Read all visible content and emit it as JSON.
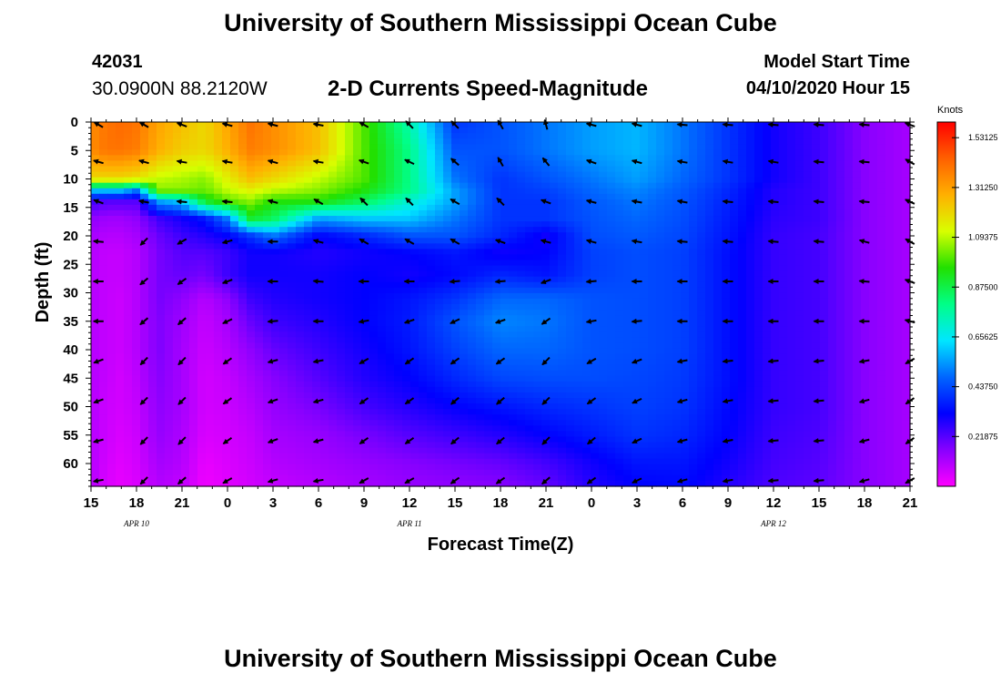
{
  "header": {
    "title": "University of Southern Mississippi Ocean Cube",
    "station_id": "42031",
    "coordinates": "30.0900N 88.2120W",
    "subtitle": "2-D Currents Speed-Magnitude",
    "model_start_label": "Model Start Time",
    "model_start_value": "04/10/2020 Hour 15"
  },
  "footer": {
    "title": "University of Southern Mississippi Ocean Cube"
  },
  "chart_data": {
    "type": "heatmap",
    "title": "2-D Currents Speed-Magnitude",
    "xlabel": "Forecast Time(Z)",
    "ylabel": "Depth (ft)",
    "x_ticks": [
      "15",
      "18",
      "21",
      "0",
      "3",
      "6",
      "9",
      "12",
      "15",
      "18",
      "21",
      "0",
      "3",
      "6",
      "9",
      "12",
      "15",
      "18",
      "21"
    ],
    "x_range_hours": [
      0,
      54
    ],
    "date_labels": [
      {
        "label": "APR 10",
        "hour": 3
      },
      {
        "label": "APR 11",
        "hour": 21
      },
      {
        "label": "APR 12",
        "hour": 45
      }
    ],
    "y_ticks": [
      0,
      5,
      10,
      15,
      20,
      25,
      30,
      35,
      40,
      45,
      50,
      55,
      60
    ],
    "y_range": [
      0,
      64
    ],
    "colorbar": {
      "unit": "Knots",
      "tick_labels": [
        "1.53125",
        "1.31250",
        "1.09375",
        "0.87500",
        "0.65625",
        "0.43750",
        "0.21875"
      ],
      "tick_values": [
        1.53125,
        1.3125,
        1.09375,
        0.875,
        0.65625,
        0.4375,
        0.21875
      ],
      "range": [
        0,
        1.6
      ],
      "colors": [
        "#ff00ff",
        "#8800ff",
        "#0000ff",
        "#0066ff",
        "#00e6ff",
        "#00ff88",
        "#22e000",
        "#d8ff00",
        "#ffb000",
        "#ff6000",
        "#ff0000"
      ]
    },
    "arrow_times": [
      0.5,
      3.5,
      6,
      9,
      12,
      15,
      18,
      21,
      24,
      27,
      30,
      33,
      36,
      39,
      42,
      45,
      48,
      51,
      54
    ],
    "arrow_depths": [
      0,
      7,
      14,
      21,
      28,
      35,
      42,
      49,
      56,
      63
    ],
    "arrow_direction_deg": [
      [
        300,
        300,
        290,
        285,
        285,
        280,
        300,
        315,
        315,
        330,
        345,
        285,
        285,
        275,
        275,
        275,
        275,
        275,
        290
      ],
      [
        285,
        285,
        280,
        280,
        285,
        280,
        290,
        295,
        310,
        330,
        320,
        290,
        285,
        280,
        280,
        280,
        275,
        275,
        300
      ],
      [
        290,
        280,
        275,
        275,
        285,
        300,
        315,
        315,
        300,
        315,
        290,
        285,
        280,
        280,
        275,
        275,
        275,
        275,
        295
      ],
      [
        275,
        225,
        240,
        255,
        270,
        285,
        300,
        300,
        300,
        290,
        285,
        285,
        280,
        275,
        275,
        275,
        275,
        285,
        300
      ],
      [
        270,
        230,
        235,
        250,
        270,
        275,
        270,
        270,
        265,
        265,
        250,
        265,
        270,
        270,
        270,
        270,
        270,
        275,
        290
      ],
      [
        270,
        230,
        230,
        245,
        265,
        270,
        260,
        250,
        245,
        250,
        235,
        260,
        265,
        270,
        270,
        270,
        270,
        270,
        285
      ],
      [
        250,
        225,
        225,
        235,
        255,
        260,
        240,
        235,
        235,
        235,
        225,
        240,
        250,
        260,
        265,
        265,
        265,
        260,
        240
      ],
      [
        250,
        225,
        225,
        235,
        250,
        255,
        235,
        235,
        230,
        230,
        225,
        235,
        245,
        255,
        260,
        265,
        265,
        255,
        235
      ],
      [
        255,
        225,
        225,
        235,
        250,
        255,
        235,
        235,
        230,
        230,
        225,
        230,
        245,
        255,
        260,
        265,
        265,
        255,
        235
      ],
      [
        260,
        225,
        230,
        240,
        255,
        260,
        240,
        240,
        235,
        235,
        230,
        235,
        245,
        255,
        260,
        265,
        265,
        255,
        240
      ]
    ],
    "grid_times": [
      0,
      1,
      2,
      3,
      4.5,
      6,
      7.5,
      9,
      10.5,
      12,
      15,
      18,
      21,
      24,
      27,
      30,
      33,
      36,
      39,
      42,
      45,
      48,
      51,
      54
    ],
    "grid_depths": [
      0,
      5,
      10,
      12,
      14,
      17,
      20,
      23,
      27,
      31,
      35,
      40,
      45,
      50,
      55,
      60,
      64
    ],
    "speed_grid": [
      [
        1.35,
        1.4,
        1.42,
        1.4,
        1.3,
        1.25,
        1.2,
        1.3,
        1.4,
        1.35,
        1.25,
        1.0,
        0.75,
        0.4,
        0.45,
        0.5,
        0.55,
        0.58,
        0.5,
        0.4,
        0.3,
        0.25,
        0.16,
        0.12
      ],
      [
        1.35,
        1.4,
        1.4,
        1.38,
        1.28,
        1.22,
        1.2,
        1.28,
        1.38,
        1.35,
        1.25,
        1.0,
        0.8,
        0.45,
        0.45,
        0.5,
        0.55,
        0.58,
        0.5,
        0.4,
        0.3,
        0.25,
        0.16,
        0.12
      ],
      [
        1.2,
        1.2,
        1.2,
        1.18,
        1.1,
        1.08,
        1.05,
        1.15,
        1.25,
        1.2,
        1.1,
        1.0,
        0.8,
        0.5,
        0.4,
        0.45,
        0.5,
        0.55,
        0.48,
        0.4,
        0.3,
        0.25,
        0.16,
        0.12
      ],
      [
        0.6,
        0.6,
        0.6,
        0.5,
        1.05,
        1.05,
        1.02,
        1.1,
        1.15,
        1.1,
        1.05,
        0.95,
        0.8,
        0.55,
        0.4,
        0.42,
        0.48,
        0.52,
        0.46,
        0.38,
        0.28,
        0.25,
        0.16,
        0.12
      ],
      [
        0.25,
        0.22,
        0.22,
        0.22,
        0.55,
        0.6,
        0.9,
        1.0,
        1.05,
        0.95,
        0.95,
        0.85,
        0.7,
        0.55,
        0.4,
        0.4,
        0.46,
        0.5,
        0.45,
        0.37,
        0.28,
        0.25,
        0.16,
        0.12
      ],
      [
        0.15,
        0.13,
        0.13,
        0.15,
        0.25,
        0.3,
        0.35,
        0.5,
        0.9,
        0.85,
        0.55,
        0.6,
        0.6,
        0.5,
        0.4,
        0.4,
        0.45,
        0.48,
        0.44,
        0.36,
        0.27,
        0.25,
        0.16,
        0.12
      ],
      [
        0.12,
        0.1,
        0.1,
        0.12,
        0.2,
        0.25,
        0.28,
        0.32,
        0.4,
        0.5,
        0.32,
        0.38,
        0.45,
        0.45,
        0.38,
        0.3,
        0.44,
        0.46,
        0.43,
        0.35,
        0.26,
        0.24,
        0.16,
        0.12
      ],
      [
        0.1,
        0.08,
        0.08,
        0.1,
        0.18,
        0.22,
        0.22,
        0.25,
        0.3,
        0.3,
        0.28,
        0.3,
        0.32,
        0.35,
        0.3,
        0.32,
        0.42,
        0.44,
        0.42,
        0.34,
        0.26,
        0.24,
        0.16,
        0.12
      ],
      [
        0.1,
        0.08,
        0.08,
        0.1,
        0.18,
        0.2,
        0.18,
        0.25,
        0.3,
        0.3,
        0.3,
        0.32,
        0.3,
        0.33,
        0.38,
        0.35,
        0.42,
        0.44,
        0.42,
        0.34,
        0.26,
        0.24,
        0.16,
        0.12
      ],
      [
        0.1,
        0.08,
        0.07,
        0.1,
        0.18,
        0.15,
        0.1,
        0.15,
        0.25,
        0.28,
        0.3,
        0.32,
        0.35,
        0.4,
        0.48,
        0.48,
        0.45,
        0.44,
        0.42,
        0.34,
        0.26,
        0.24,
        0.16,
        0.12
      ],
      [
        0.1,
        0.08,
        0.07,
        0.1,
        0.17,
        0.13,
        0.08,
        0.12,
        0.2,
        0.25,
        0.28,
        0.32,
        0.36,
        0.45,
        0.52,
        0.5,
        0.45,
        0.44,
        0.42,
        0.34,
        0.26,
        0.24,
        0.16,
        0.12
      ],
      [
        0.1,
        0.08,
        0.07,
        0.1,
        0.17,
        0.12,
        0.07,
        0.1,
        0.15,
        0.2,
        0.25,
        0.3,
        0.35,
        0.42,
        0.48,
        0.48,
        0.45,
        0.44,
        0.42,
        0.34,
        0.26,
        0.24,
        0.16,
        0.12
      ],
      [
        0.1,
        0.08,
        0.06,
        0.09,
        0.16,
        0.12,
        0.06,
        0.08,
        0.12,
        0.16,
        0.22,
        0.28,
        0.32,
        0.38,
        0.43,
        0.44,
        0.44,
        0.43,
        0.41,
        0.34,
        0.26,
        0.24,
        0.16,
        0.12
      ],
      [
        0.1,
        0.07,
        0.06,
        0.08,
        0.15,
        0.12,
        0.06,
        0.07,
        0.1,
        0.14,
        0.18,
        0.24,
        0.28,
        0.32,
        0.35,
        0.38,
        0.4,
        0.42,
        0.4,
        0.33,
        0.26,
        0.24,
        0.16,
        0.12
      ],
      [
        0.1,
        0.07,
        0.05,
        0.07,
        0.14,
        0.11,
        0.05,
        0.06,
        0.08,
        0.12,
        0.14,
        0.18,
        0.22,
        0.25,
        0.28,
        0.32,
        0.36,
        0.4,
        0.38,
        0.32,
        0.25,
        0.23,
        0.16,
        0.12
      ],
      [
        0.1,
        0.06,
        0.04,
        0.06,
        0.12,
        0.1,
        0.03,
        0.05,
        0.07,
        0.1,
        0.12,
        0.14,
        0.16,
        0.18,
        0.2,
        0.24,
        0.3,
        0.35,
        0.35,
        0.3,
        0.24,
        0.22,
        0.16,
        0.12
      ],
      [
        0.1,
        0.05,
        0.03,
        0.05,
        0.1,
        0.08,
        0.02,
        0.04,
        0.06,
        0.08,
        0.1,
        0.12,
        0.14,
        0.15,
        0.16,
        0.2,
        0.28,
        0.32,
        0.33,
        0.28,
        0.23,
        0.21,
        0.16,
        0.12
      ]
    ]
  }
}
